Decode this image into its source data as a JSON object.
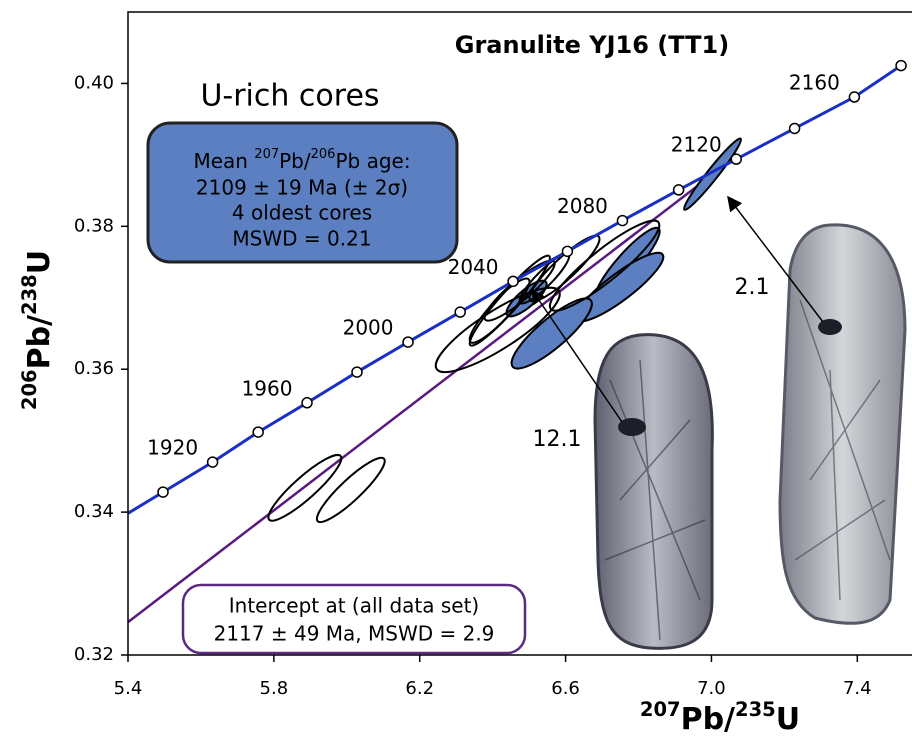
{
  "chart_data": {
    "type": "concordia",
    "title": "Granulite YJ16  (TT1)",
    "subtitle": "U-rich cores",
    "x_label": [
      "207",
      "Pb/",
      "235",
      "U"
    ],
    "y_label": [
      "206",
      "Pb/",
      "238",
      "U"
    ],
    "xlim": [
      5.4,
      7.55
    ],
    "ylim": [
      0.32,
      0.41
    ],
    "xticks": [
      5.4,
      5.8,
      6.2,
      6.6,
      {
        "value": 7.0,
        "label": "7.0"
      },
      7.4
    ],
    "yticks": [
      0.32,
      0.34,
      0.36,
      0.38,
      {
        "value": 0.4,
        "label": "0.40"
      }
    ],
    "concordia": {
      "color": "#1a2fc4",
      "x": [
        5.496,
        5.632,
        5.757,
        5.891,
        6.028,
        6.168,
        6.311,
        6.456,
        6.605,
        6.756,
        6.91,
        7.068,
        7.228,
        7.392,
        7.52
      ],
      "y": [
        0.3428,
        0.347,
        0.3512,
        0.3553,
        0.3596,
        0.3638,
        0.368,
        0.3723,
        0.3765,
        0.3808,
        0.3851,
        0.3894,
        0.3937,
        0.3981,
        0.4025
      ],
      "age_labels": [
        null,
        1920,
        null,
        1960,
        null,
        2000,
        null,
        2040,
        null,
        2080,
        null,
        2120,
        null,
        2160,
        null
      ]
    },
    "discordia": {
      "color": "#5a1a7e",
      "x": [
        5.4,
        7.06
      ],
      "y": [
        0.3246,
        0.3895
      ]
    },
    "ellipse_fill": "#5b7fc0",
    "ellipses": [
      {
        "x": 7.003,
        "y": 0.3873,
        "sx": 0.078,
        "sy": 0.005,
        "rho": 0.97,
        "filled": true
      },
      {
        "x": 6.77,
        "y": 0.3748,
        "sx": 0.088,
        "sy": 0.005,
        "rho": 0.9,
        "filled": true
      },
      {
        "x": 6.748,
        "y": 0.3715,
        "sx": 0.12,
        "sy": 0.0048,
        "rho": 0.88,
        "filled": true
      },
      {
        "x": 6.562,
        "y": 0.365,
        "sx": 0.11,
        "sy": 0.0049,
        "rho": 0.85,
        "filled": true
      },
      {
        "x": 6.493,
        "y": 0.3699,
        "sx": 0.055,
        "sy": 0.0025,
        "rho": 0.8,
        "filled": true
      },
      {
        "x": 6.707,
        "y": 0.3745,
        "sx": 0.15,
        "sy": 0.0063,
        "rho": 0.9,
        "filled": false
      },
      {
        "x": 6.597,
        "y": 0.3741,
        "sx": 0.096,
        "sy": 0.0046,
        "rho": 0.9,
        "filled": false
      },
      {
        "x": 6.414,
        "y": 0.3655,
        "sx": 0.17,
        "sy": 0.0059,
        "rho": 0.85,
        "filled": false
      },
      {
        "x": 6.447,
        "y": 0.3696,
        "sx": 0.11,
        "sy": 0.0063,
        "rho": 0.95,
        "filled": false
      },
      {
        "x": 6.474,
        "y": 0.371,
        "sx": 0.096,
        "sy": 0.0042,
        "rho": 0.9,
        "filled": false
      },
      {
        "x": 6.419,
        "y": 0.3682,
        "sx": 0.082,
        "sy": 0.0045,
        "rho": 0.9,
        "filled": false
      },
      {
        "x": 6.542,
        "y": 0.3727,
        "sx": 0.068,
        "sy": 0.0035,
        "rho": 0.9,
        "filled": false
      },
      {
        "x": 5.885,
        "y": 0.3434,
        "sx": 0.1,
        "sy": 0.0046,
        "rho": 0.9,
        "filled": false
      },
      {
        "x": 6.011,
        "y": 0.3431,
        "sx": 0.093,
        "sy": 0.0045,
        "rho": 0.9,
        "filled": false
      }
    ],
    "mean_box": {
      "line1": [
        "Mean ",
        "207",
        "Pb/",
        "206",
        "Pb age:"
      ],
      "line2": "2109 ± 19 Ma (± 2σ)",
      "line3": "4 oldest cores",
      "line4": "MSWD = 0.21"
    },
    "intercept_box": {
      "line1": "Intercept at (all data set)",
      "line2": "2117 ± 49 Ma, MSWD = 2.9"
    },
    "grain_labels": [
      "2.1",
      "12.1"
    ]
  }
}
